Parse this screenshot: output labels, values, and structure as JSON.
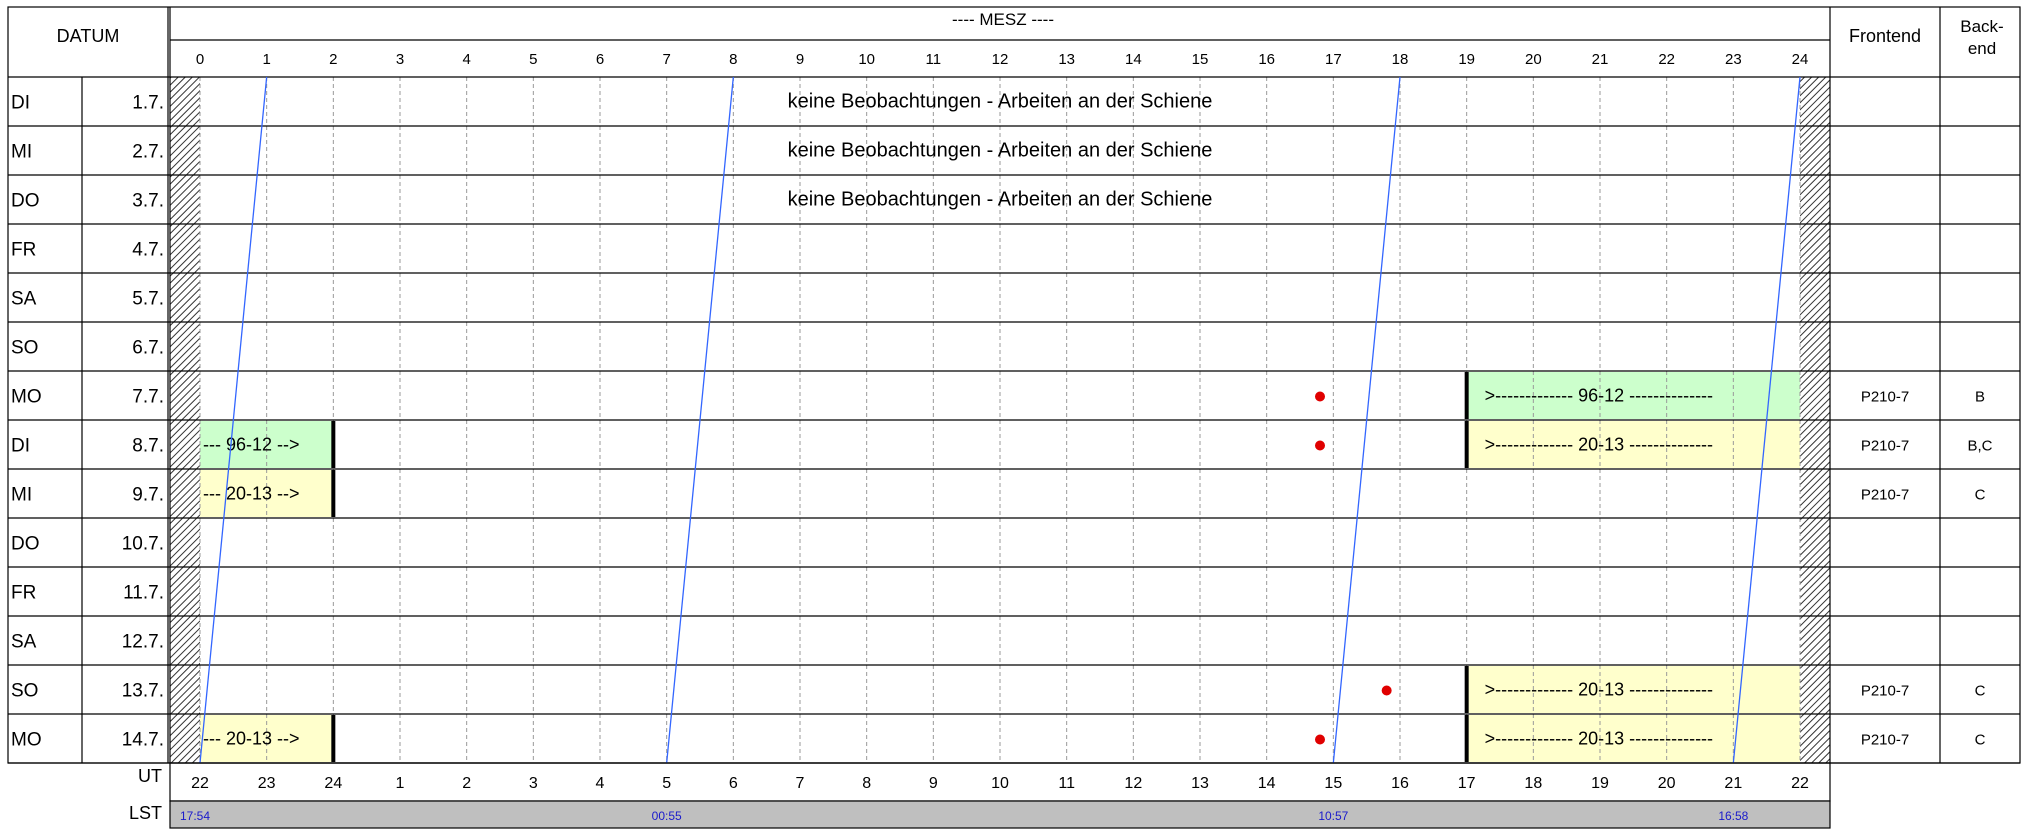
{
  "chart_data": {
    "type": "table",
    "title": "---- MESZ ----",
    "header": {
      "datum": "DATUM",
      "frontend": "Frontend",
      "backend_line1": "Back-",
      "backend_line2": "end"
    },
    "hours_mesz": [
      "0",
      "1",
      "2",
      "3",
      "4",
      "5",
      "6",
      "7",
      "8",
      "9",
      "10",
      "11",
      "12",
      "13",
      "14",
      "15",
      "16",
      "17",
      "18",
      "19",
      "20",
      "21",
      "22",
      "23",
      "24"
    ],
    "hours_ut": [
      "22",
      "23",
      "24",
      "1",
      "2",
      "3",
      "4",
      "5",
      "6",
      "7",
      "8",
      "9",
      "10",
      "11",
      "12",
      "13",
      "14",
      "15",
      "16",
      "17",
      "18",
      "19",
      "20",
      "21",
      "22"
    ],
    "ut_label": "UT",
    "lst_label": "LST",
    "lst_ticks": [
      {
        "mesz": 0,
        "label": "17:54"
      },
      {
        "mesz": 7,
        "label": "00:55"
      },
      {
        "mesz": 17,
        "label": "10:57"
      },
      {
        "mesz": 23,
        "label": "16:58"
      }
    ],
    "rows": [
      {
        "day": "DI",
        "date": "1.7.",
        "frontend": "",
        "backend": ""
      },
      {
        "day": "MI",
        "date": "2.7.",
        "frontend": "",
        "backend": ""
      },
      {
        "day": "DO",
        "date": "3.7.",
        "frontend": "",
        "backend": ""
      },
      {
        "day": "FR",
        "date": "4.7.",
        "frontend": "",
        "backend": ""
      },
      {
        "day": "SA",
        "date": "5.7.",
        "frontend": "",
        "backend": ""
      },
      {
        "day": "SO",
        "date": "6.7.",
        "frontend": "",
        "backend": ""
      },
      {
        "day": "MO",
        "date": "7.7.",
        "frontend": "P210-7",
        "backend": "B"
      },
      {
        "day": "DI",
        "date": "8.7.",
        "frontend": "P210-7",
        "backend": "B,C"
      },
      {
        "day": "MI",
        "date": "9.7.",
        "frontend": "P210-7",
        "backend": "C"
      },
      {
        "day": "DO",
        "date": "10.7.",
        "frontend": "",
        "backend": ""
      },
      {
        "day": "FR",
        "date": "11.7.",
        "frontend": "",
        "backend": ""
      },
      {
        "day": "SA",
        "date": "12.7.",
        "frontend": "",
        "backend": ""
      },
      {
        "day": "SO",
        "date": "13.7.",
        "frontend": "P210-7",
        "backend": "C"
      },
      {
        "day": "MO",
        "date": "14.7.",
        "frontend": "P210-7",
        "backend": "C"
      }
    ],
    "notes": [
      {
        "row": 0,
        "text": "keine Beobachtungen - Arbeiten an der Schiene"
      },
      {
        "row": 1,
        "text": "keine Beobachtungen - Arbeiten an der Schiene"
      },
      {
        "row": 2,
        "text": "keine Beobachtungen - Arbeiten an der Schiene"
      }
    ],
    "blocks": [
      {
        "row": 6,
        "start": 19,
        "end": 24,
        "label": ">------------- 96-12 --------------",
        "color": "#ccffcc"
      },
      {
        "row": 7,
        "start": 0,
        "end": 2,
        "label": "--- 96-12 -->",
        "color": "#ccffcc"
      },
      {
        "row": 7,
        "start": 19,
        "end": 24,
        "label": ">------------- 20-13 --------------",
        "color": "#ffffcc"
      },
      {
        "row": 8,
        "start": 0,
        "end": 2,
        "label": "--- 20-13 -->",
        "color": "#ffffcc"
      },
      {
        "row": 12,
        "start": 19,
        "end": 24,
        "label": ">------------- 20-13 --------------",
        "color": "#ffffcc"
      },
      {
        "row": 13,
        "start": 0,
        "end": 2,
        "label": "--- 20-13 -->",
        "color": "#ffffcc"
      },
      {
        "row": 13,
        "start": 19,
        "end": 24,
        "label": ">------------- 20-13 --------------",
        "color": "#ffffcc"
      }
    ],
    "markers": [
      {
        "row": 6,
        "mesz": 16.8
      },
      {
        "row": 7,
        "mesz": 16.8
      },
      {
        "row": 12,
        "mesz": 17.8
      },
      {
        "row": 13,
        "mesz": 16.8
      }
    ],
    "lst_lines": [
      {
        "start_mesz": 1.0,
        "end_mesz": 0.0
      },
      {
        "start_mesz": 8.0,
        "end_mesz": 7.0
      },
      {
        "start_mesz": 18.0,
        "end_mesz": 17.0
      },
      {
        "start_mesz": 24.0,
        "end_mesz": 23.0
      }
    ],
    "colors": {
      "grid": "#000000",
      "minor_grid": "#999999",
      "lst_line": "#3366ff",
      "marker": "#e00000",
      "lst_bar": "#bfbfbf",
      "lst_text": "#1a1acc",
      "green": "#ccffcc",
      "yellow": "#ffffcc"
    }
  }
}
